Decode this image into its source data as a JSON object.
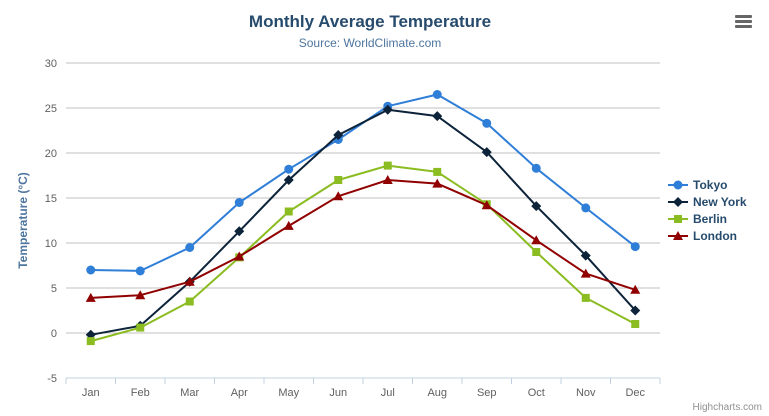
{
  "header": {
    "title": "Monthly Average Temperature",
    "subtitle": "Source: WorldClimate.com"
  },
  "export_menu": {
    "icon": "hamburger-icon"
  },
  "credits": {
    "label": "Highcharts.com"
  },
  "chart_data": {
    "type": "line",
    "title": "Monthly Average Temperature",
    "subtitle": "Source: WorldClimate.com",
    "categories": [
      "Jan",
      "Feb",
      "Mar",
      "Apr",
      "May",
      "Jun",
      "Jul",
      "Aug",
      "Sep",
      "Oct",
      "Nov",
      "Dec"
    ],
    "xlabel": "",
    "ylabel": "Temperature (°C)",
    "ylim": [
      -5,
      30
    ],
    "ytick_step": 5,
    "yticks": [
      -5,
      0,
      5,
      10,
      15,
      20,
      25,
      30
    ],
    "grid": true,
    "legend_position": "right",
    "series": [
      {
        "name": "Tokyo",
        "color": "#2f7ed8",
        "marker": "circle",
        "values": [
          7.0,
          6.9,
          9.5,
          14.5,
          18.2,
          21.5,
          25.2,
          26.5,
          23.3,
          18.3,
          13.9,
          9.6
        ]
      },
      {
        "name": "New York",
        "color": "#0d233a",
        "marker": "diamond",
        "values": [
          -0.2,
          0.8,
          5.7,
          11.3,
          17.0,
          22.0,
          24.8,
          24.1,
          20.1,
          14.1,
          8.6,
          2.5
        ]
      },
      {
        "name": "Berlin",
        "color": "#8bbc21",
        "marker": "square",
        "values": [
          -0.9,
          0.6,
          3.5,
          8.4,
          13.5,
          17.0,
          18.6,
          17.9,
          14.3,
          9.0,
          3.9,
          1.0
        ]
      },
      {
        "name": "London",
        "color": "#910000",
        "marker": "triangle",
        "values": [
          3.9,
          4.2,
          5.7,
          8.5,
          11.9,
          15.2,
          17.0,
          16.6,
          14.2,
          10.3,
          6.6,
          4.8
        ]
      }
    ]
  },
  "colors": {
    "title": "#274b6d",
    "subtitle": "#4d759e",
    "axis_label": "#606060",
    "axis_title": "#4d759e",
    "grid": "#c0c0c0",
    "axis_line": "#c0d0e0",
    "legend_text": "#274b6d",
    "credits": "#909090",
    "menu_icon": "#666666",
    "background": "#ffffff"
  }
}
